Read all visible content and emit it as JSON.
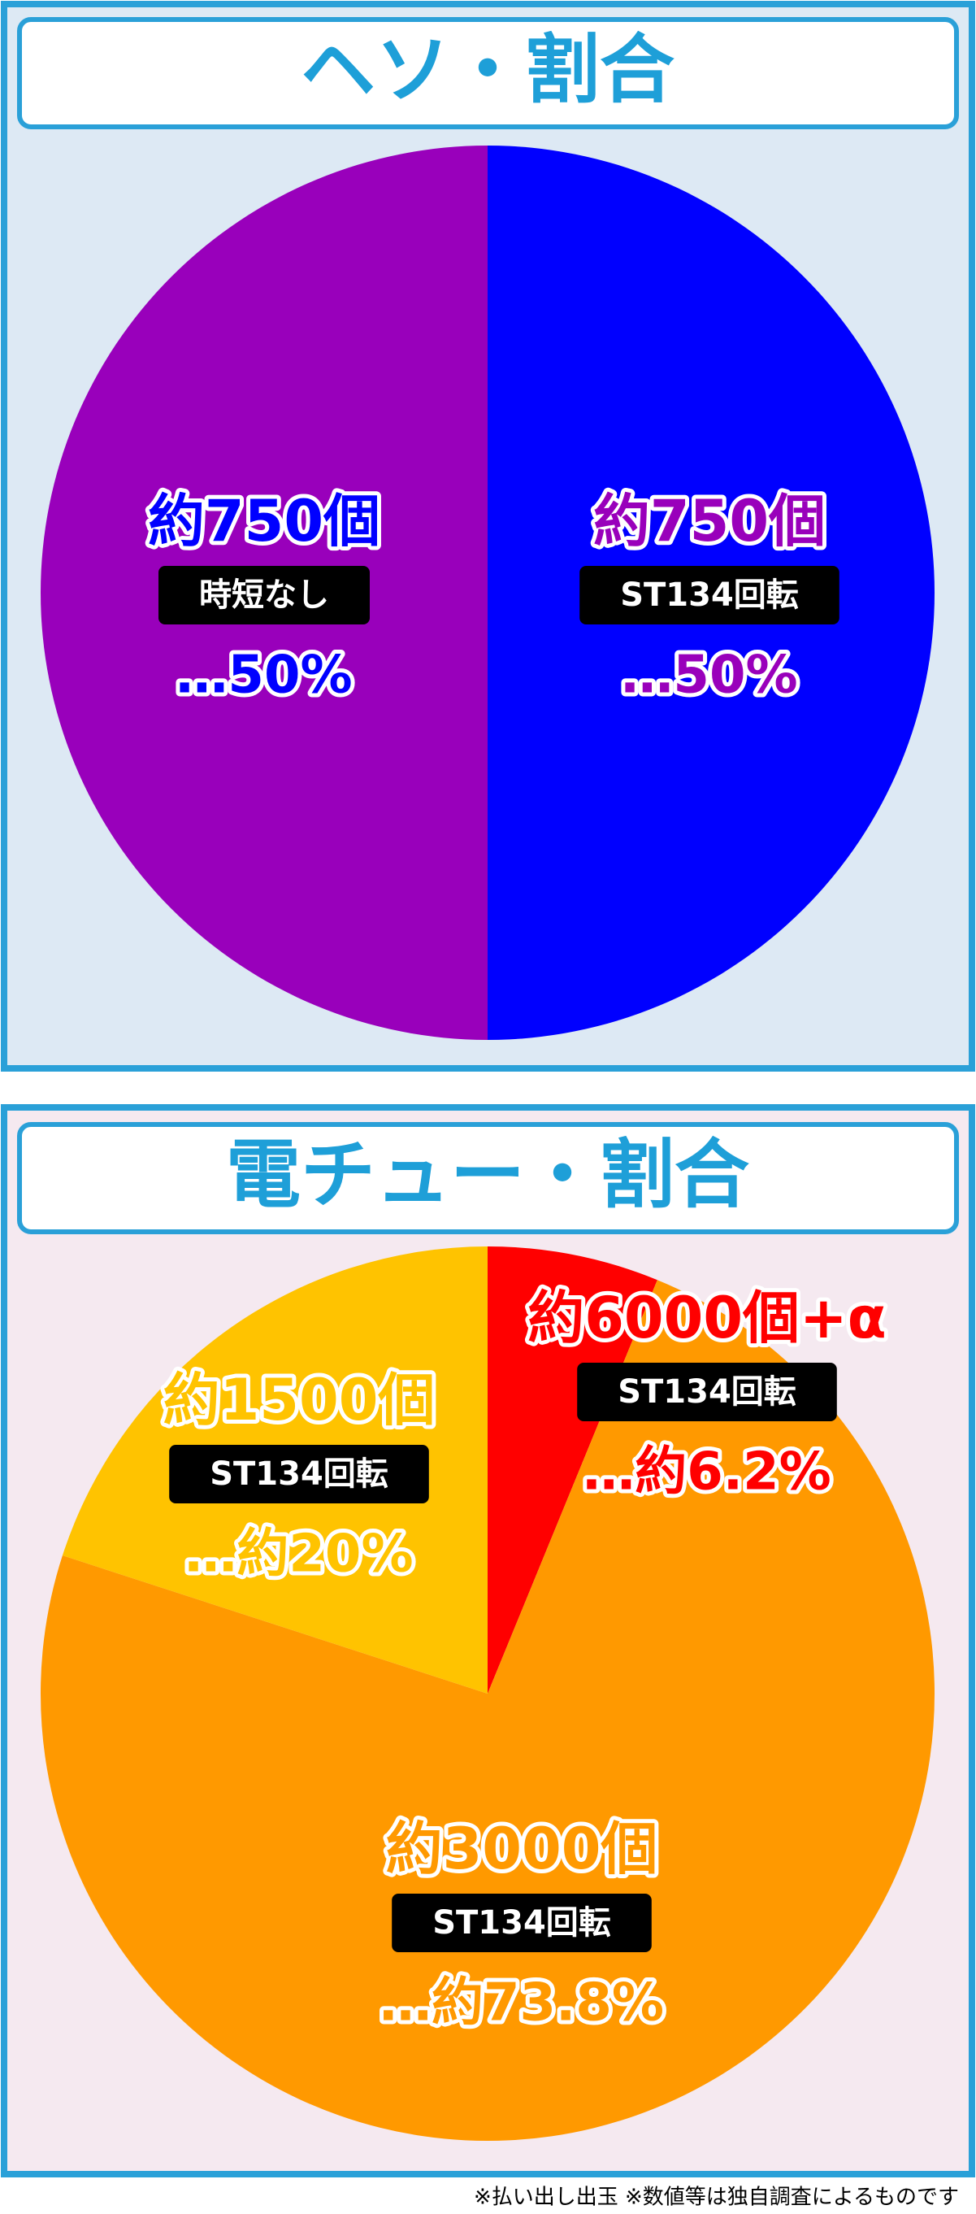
{
  "chart_data": [
    {
      "type": "pie",
      "title": "ヘソ・割合",
      "categories": [
        "時短なし",
        "ST134回転"
      ],
      "amount_labels": [
        "約750個",
        "約750個"
      ],
      "values": [
        50,
        50
      ],
      "value_labels": [
        "…50%",
        "…50%"
      ],
      "colors": [
        "#0000ff",
        "#9900bb"
      ]
    },
    {
      "type": "pie",
      "title": "電チュー・割合",
      "categories": [
        "ST134回転",
        "ST134回転",
        "ST134回転"
      ],
      "amount_labels": [
        "約6000個+α",
        "約3000個",
        "約1500個"
      ],
      "values": [
        6.2,
        73.8,
        20
      ],
      "value_labels": [
        "…約6.2%",
        "…約73.8%",
        "…約20%"
      ],
      "colors": [
        "#ff0000",
        "#ff9900",
        "#ffc300"
      ]
    }
  ],
  "footnote": "※払い出し出玉 ※数値等は独自調査によるものです"
}
